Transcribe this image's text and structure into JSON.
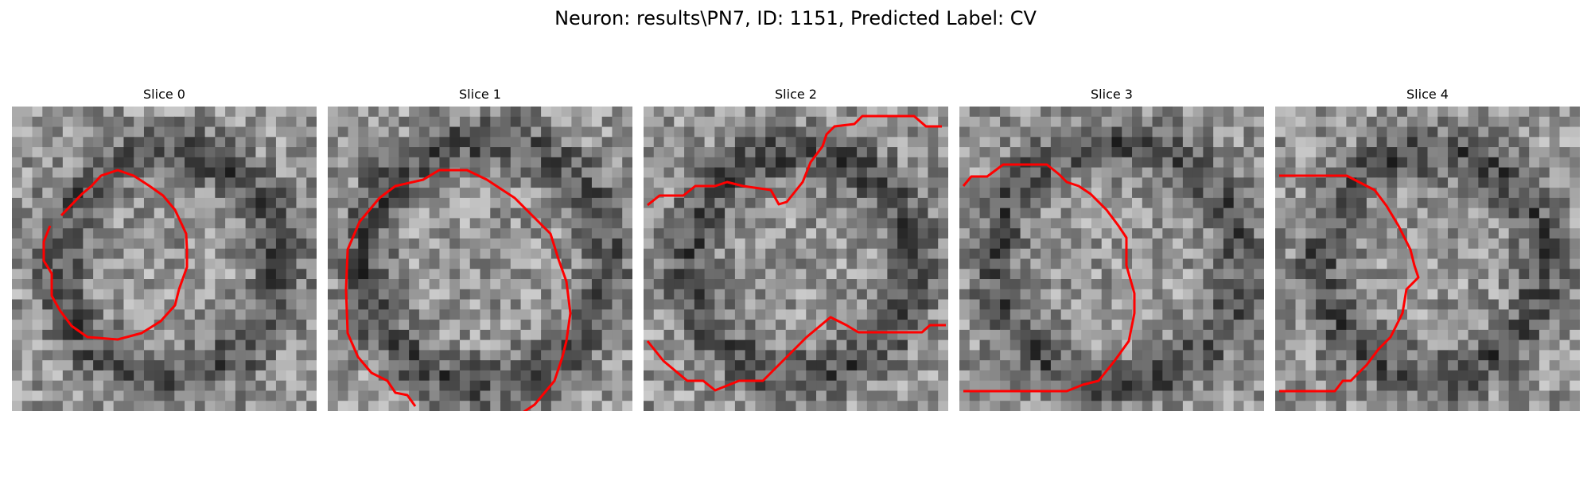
{
  "figure": {
    "title": "Neuron: results\\PN7, ID: 1151, Predicted Label: CV"
  },
  "panels": [
    {
      "title": "Slice 0",
      "contour_color": "#ff0000"
    },
    {
      "title": "Slice 1",
      "contour_color": "#ff0000"
    },
    {
      "title": "Slice 2",
      "contour_color": "#ff0000"
    },
    {
      "title": "Slice 3",
      "contour_color": "#ff0000"
    },
    {
      "title": "Slice 4",
      "contour_color": "#ff0000"
    }
  ]
}
